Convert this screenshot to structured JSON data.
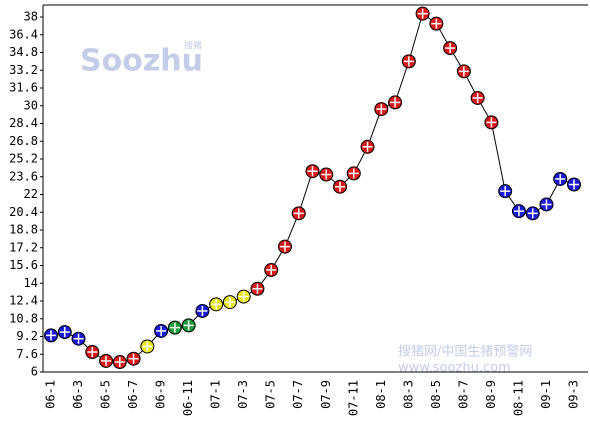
{
  "chart_data": {
    "type": "line",
    "watermark_logo": "Soozhu",
    "watermark_logo_small": "搜猪",
    "watermark_site": "搜猪网/中国生猪预警网",
    "watermark_url": "www.soozhu.com",
    "categories": [
      "06-1",
      null,
      "06-3",
      null,
      "06-5",
      null,
      "06-7",
      null,
      "06-9",
      null,
      "06-11",
      null,
      "07-1",
      null,
      "07-3",
      null,
      "07-5",
      null,
      "07-7",
      null,
      "07-9",
      null,
      "07-11",
      null,
      "08-1",
      null,
      "08-3",
      null,
      "08-5",
      null,
      "08-7",
      null,
      "08-9",
      null,
      "08-11",
      null,
      "09-1",
      null,
      "09-3"
    ],
    "values": [
      9.3,
      9.6,
      9.0,
      7.8,
      7.0,
      6.9,
      7.2,
      8.3,
      9.7,
      10.0,
      10.2,
      11.5,
      12.1,
      12.3,
      12.8,
      13.5,
      15.2,
      17.3,
      20.3,
      24.1,
      23.8,
      22.7,
      23.9,
      26.3,
      29.7,
      30.3,
      34.0,
      38.3,
      37.4,
      35.2,
      33.1,
      30.7,
      28.5,
      22.3,
      20.5,
      20.3,
      21.1,
      23.4,
      22.9
    ],
    "point_colors": [
      "#1a1ad8",
      "#1a1ad8",
      "#1a1ad8",
      "#d81a1a",
      "#d81a1a",
      "#d81a1a",
      "#d81a1a",
      "#e8e81a",
      "#1a1ad8",
      "#1a9a3a",
      "#1a9a3a",
      "#1a1ad8",
      "#e8e81a",
      "#e8e81a",
      "#e8e81a",
      "#d81a1a",
      "#d81a1a",
      "#d81a1a",
      "#d81a1a",
      "#d81a1a",
      "#d81a1a",
      "#d81a1a",
      "#d81a1a",
      "#d81a1a",
      "#d81a1a",
      "#d81a1a",
      "#d81a1a",
      "#d81a1a",
      "#d81a1a",
      "#d81a1a",
      "#d81a1a",
      "#d81a1a",
      "#d81a1a",
      "#1a1ad8",
      "#1a1ad8",
      "#1a1ad8",
      "#1a1ad8",
      "#1a1ad8",
      "#1a1ad8"
    ],
    "color": "#000000",
    "ylim": [
      6,
      38
    ],
    "yticks": [
      6,
      7.6,
      9.2,
      10.8,
      12.4,
      14,
      15.6,
      17.2,
      18.8,
      20.4,
      22,
      23.6,
      25.2,
      26.8,
      28.4,
      30,
      31.6,
      33.2,
      34.8,
      36.4,
      38
    ],
    "grid": false
  }
}
